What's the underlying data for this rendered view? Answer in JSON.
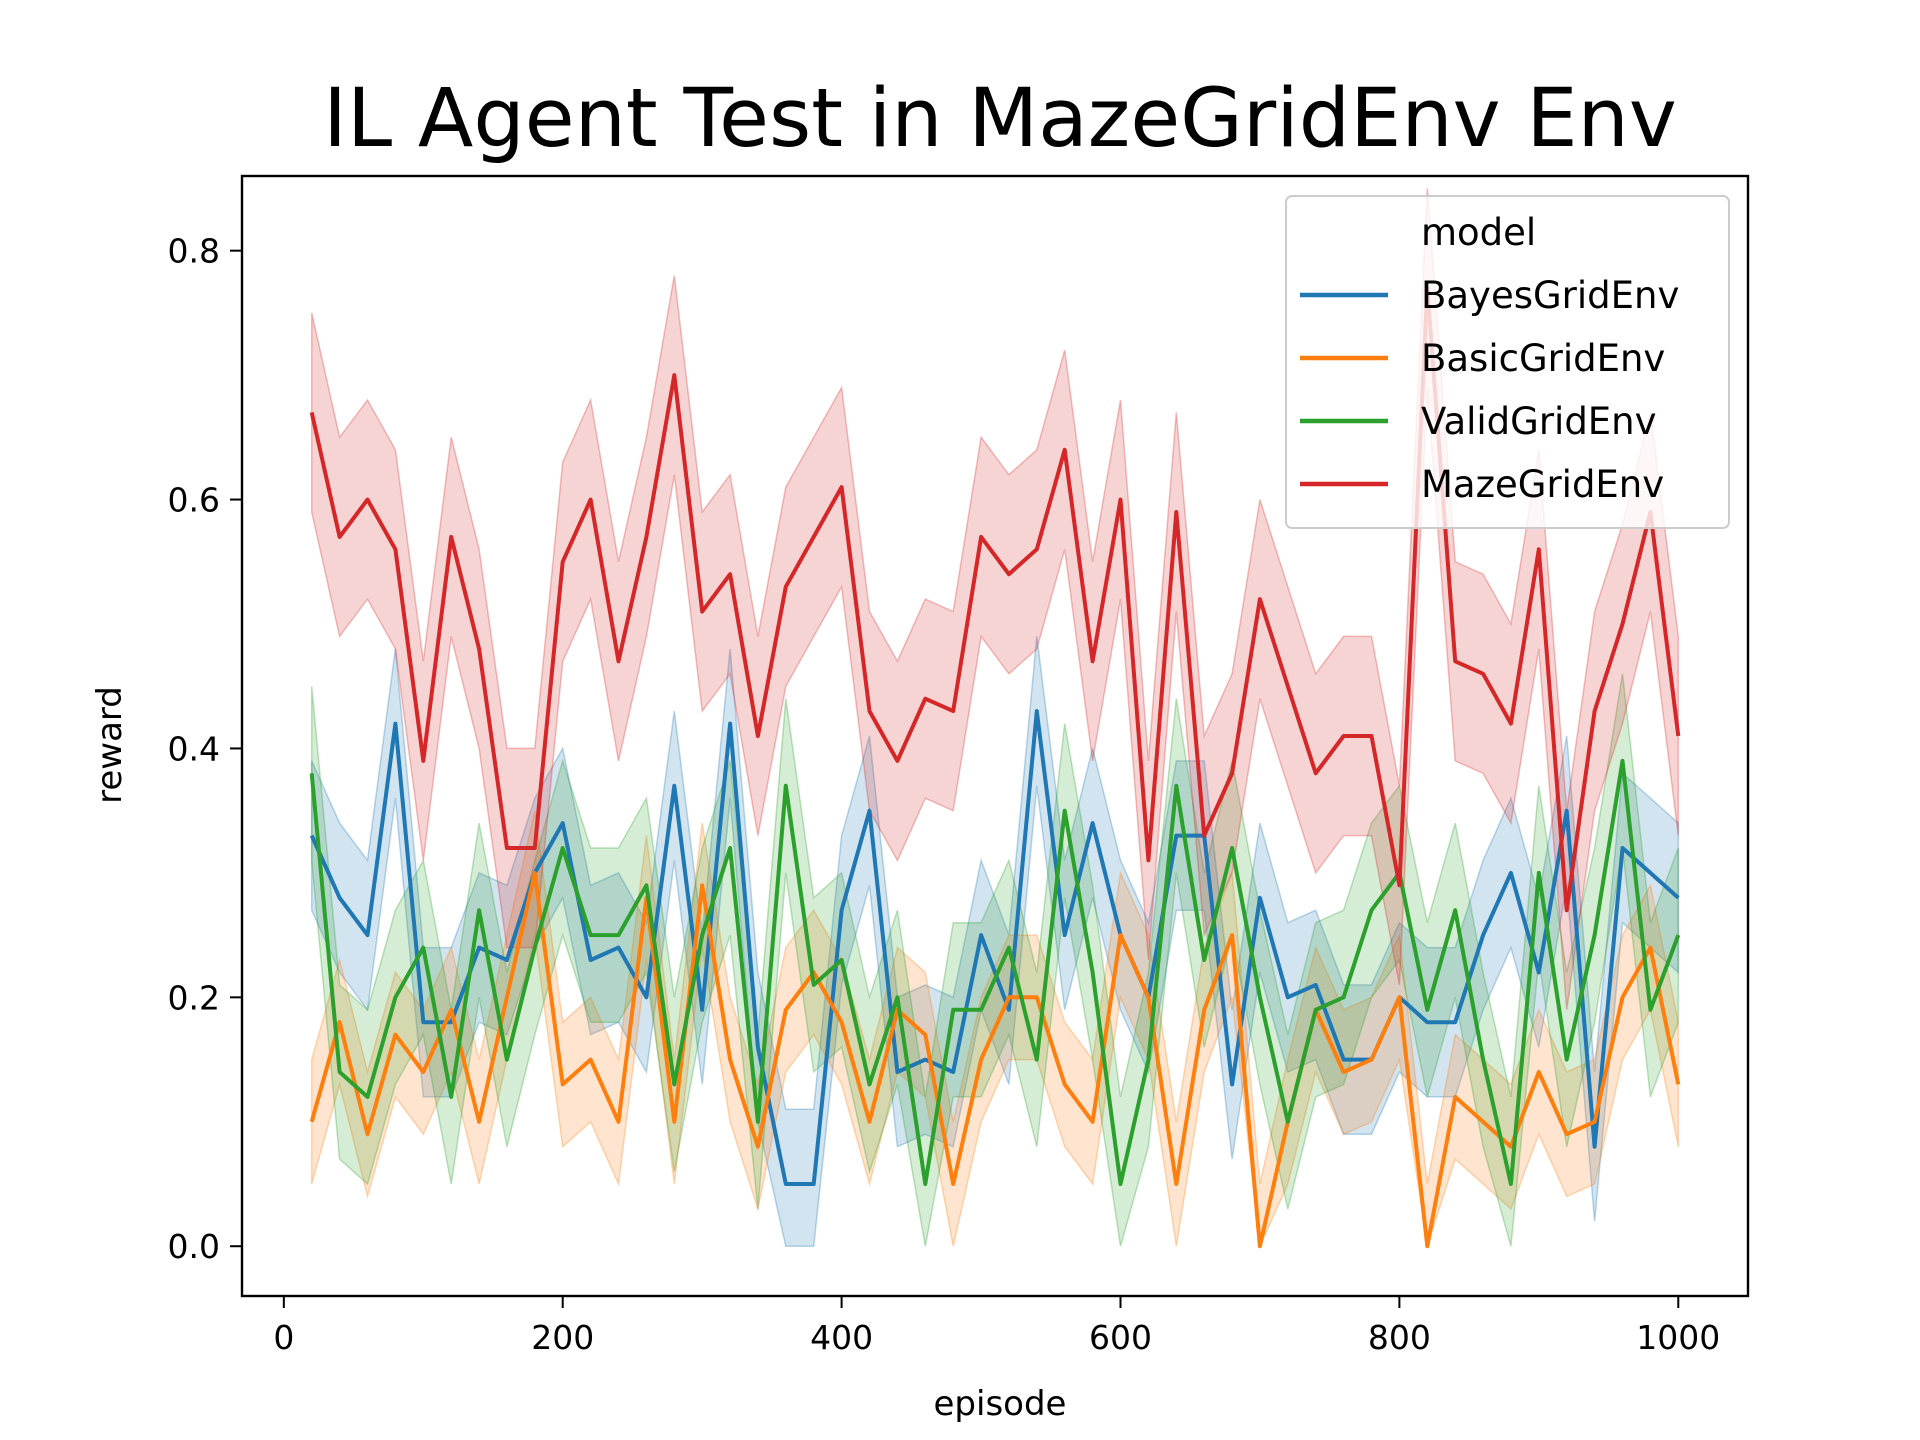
{
  "chart_data": {
    "type": "line",
    "title": "IL Agent Test in MazeGridEnv Env",
    "xlabel": "episode",
    "ylabel": "reward",
    "xlim": [
      -30,
      1050
    ],
    "ylim": [
      -0.04,
      0.86
    ],
    "xticks": [
      0,
      200,
      400,
      600,
      800,
      1000
    ],
    "xtick_labels": [
      "0",
      "200",
      "400",
      "600",
      "800",
      "1000"
    ],
    "yticks": [
      0.0,
      0.2,
      0.4,
      0.6,
      0.8
    ],
    "ytick_labels": [
      "0.0",
      "0.2",
      "0.4",
      "0.6",
      "0.8"
    ],
    "grid": false,
    "legend": {
      "title": "model",
      "placement": "top-right"
    },
    "x": [
      20,
      40,
      60,
      80,
      100,
      120,
      140,
      160,
      180,
      200,
      220,
      240,
      260,
      280,
      300,
      320,
      340,
      360,
      380,
      400,
      420,
      440,
      460,
      480,
      500,
      520,
      540,
      560,
      580,
      600,
      620,
      640,
      660,
      680,
      700,
      720,
      740,
      760,
      780,
      800,
      820,
      840,
      860,
      880,
      900,
      920,
      940,
      960,
      980,
      1000
    ],
    "series": [
      {
        "name": "BayesGridEnv",
        "color": "#1f77b4",
        "values": [
          0.33,
          0.28,
          0.25,
          0.42,
          0.18,
          0.18,
          0.24,
          0.23,
          0.3,
          0.34,
          0.23,
          0.24,
          0.2,
          0.37,
          0.19,
          0.42,
          0.16,
          0.05,
          0.05,
          0.27,
          0.35,
          0.14,
          0.15,
          0.14,
          0.25,
          0.19,
          0.43,
          0.25,
          0.34,
          0.25,
          0.2,
          0.33,
          0.33,
          0.13,
          0.28,
          0.2,
          0.21,
          0.15,
          0.15,
          0.2,
          0.18,
          0.18,
          0.25,
          0.3,
          0.22,
          0.35,
          0.08,
          0.32,
          0.3,
          0.28
        ],
        "band": 0.06
      },
      {
        "name": "BasicGridEnv",
        "color": "#ff7f0e",
        "values": [
          0.1,
          0.18,
          0.09,
          0.17,
          0.14,
          0.19,
          0.1,
          0.2,
          0.3,
          0.13,
          0.15,
          0.1,
          0.28,
          0.1,
          0.29,
          0.15,
          0.08,
          0.19,
          0.22,
          0.18,
          0.1,
          0.19,
          0.17,
          0.05,
          0.15,
          0.2,
          0.2,
          0.13,
          0.1,
          0.25,
          0.2,
          0.05,
          0.19,
          0.25,
          0.0,
          0.1,
          0.19,
          0.14,
          0.15,
          0.2,
          0.0,
          0.12,
          0.1,
          0.08,
          0.14,
          0.09,
          0.1,
          0.2,
          0.24,
          0.13
        ],
        "band": 0.05
      },
      {
        "name": "ValidGridEnv",
        "color": "#2ca02c",
        "values": [
          0.38,
          0.14,
          0.12,
          0.2,
          0.24,
          0.12,
          0.27,
          0.15,
          0.24,
          0.32,
          0.25,
          0.25,
          0.29,
          0.13,
          0.25,
          0.32,
          0.1,
          0.37,
          0.21,
          0.23,
          0.13,
          0.2,
          0.05,
          0.19,
          0.19,
          0.24,
          0.15,
          0.35,
          0.22,
          0.05,
          0.15,
          0.37,
          0.23,
          0.32,
          0.2,
          0.1,
          0.19,
          0.2,
          0.27,
          0.3,
          0.19,
          0.27,
          0.15,
          0.05,
          0.3,
          0.15,
          0.25,
          0.39,
          0.19,
          0.25
        ],
        "band": 0.07
      },
      {
        "name": "MazeGridEnv",
        "color": "#d62728",
        "values": [
          0.67,
          0.57,
          0.6,
          0.56,
          0.39,
          0.57,
          0.48,
          0.32,
          0.32,
          0.55,
          0.6,
          0.47,
          0.57,
          0.7,
          0.51,
          0.54,
          0.41,
          0.53,
          0.57,
          0.61,
          0.43,
          0.39,
          0.44,
          0.43,
          0.57,
          0.54,
          0.56,
          0.64,
          0.47,
          0.6,
          0.31,
          0.59,
          0.33,
          0.38,
          0.52,
          0.45,
          0.38,
          0.41,
          0.41,
          0.29,
          0.77,
          0.47,
          0.46,
          0.42,
          0.56,
          0.27,
          0.43,
          0.5,
          0.59,
          0.41
        ],
        "band": 0.08
      }
    ]
  }
}
